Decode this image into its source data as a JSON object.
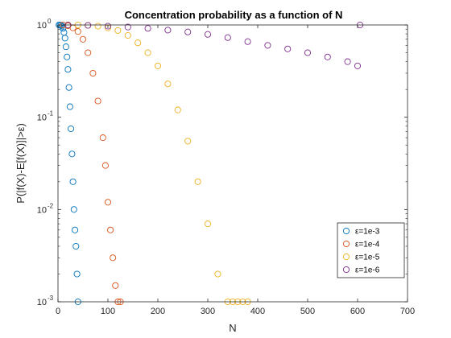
{
  "chart_data": {
    "type": "scatter",
    "title": "Concentration probability as a function of N",
    "xlabel": "N",
    "ylabel": "P(|f(X)-E[f(X)]|>ε)",
    "xlim": [
      0,
      700
    ],
    "ylim": [
      0.001,
      1
    ],
    "yscale": "log",
    "grid": false,
    "legend_position": "bottom-right",
    "marker": "open-circle",
    "x_ticks": [
      "0",
      "100",
      "200",
      "300",
      "400",
      "500",
      "600",
      "700"
    ],
    "y_ticks": [
      "10",
      "10",
      "10",
      "10"
    ],
    "y_tick_exponents": [
      "0",
      "-1",
      "-2",
      "-3"
    ],
    "series": [
      {
        "name": "ε=1e-3",
        "color": "#0072BD",
        "x": [
          2,
          4,
          6,
          8,
          10,
          12,
          14,
          16,
          18,
          20,
          22,
          24,
          26,
          28,
          30,
          32,
          34,
          36,
          38,
          40
        ],
        "y": [
          1.0,
          1.0,
          0.99,
          0.97,
          0.92,
          0.83,
          0.72,
          0.58,
          0.45,
          0.33,
          0.21,
          0.13,
          0.075,
          0.04,
          0.02,
          0.01,
          0.006,
          0.004,
          0.002,
          0.001
        ]
      },
      {
        "name": "ε=1e-4",
        "color": "#D95319",
        "x": [
          10,
          20,
          30,
          40,
          50,
          60,
          70,
          80,
          90,
          95,
          100,
          105,
          110,
          115,
          120,
          125
        ],
        "y": [
          1.0,
          0.98,
          0.93,
          0.85,
          0.7,
          0.5,
          0.3,
          0.15,
          0.06,
          0.03,
          0.012,
          0.006,
          0.003,
          0.0015,
          0.001,
          0.001
        ]
      },
      {
        "name": "ε=1e-5",
        "color": "#EDB120",
        "x": [
          20,
          40,
          60,
          80,
          100,
          120,
          140,
          160,
          180,
          200,
          220,
          240,
          260,
          280,
          300,
          320,
          340,
          350,
          360,
          370,
          380
        ],
        "y": [
          1.0,
          1.0,
          0.99,
          0.97,
          0.93,
          0.87,
          0.77,
          0.64,
          0.5,
          0.36,
          0.23,
          0.12,
          0.055,
          0.02,
          0.007,
          0.002,
          0.001,
          0.001,
          0.001,
          0.001,
          0.001
        ]
      },
      {
        "name": "ε=1e-6",
        "color": "#7E2F8E",
        "x": [
          20,
          60,
          100,
          140,
          180,
          220,
          260,
          300,
          340,
          380,
          420,
          460,
          500,
          540,
          580,
          600,
          605
        ],
        "y": [
          1.0,
          0.99,
          0.97,
          0.95,
          0.92,
          0.88,
          0.84,
          0.79,
          0.73,
          0.66,
          0.6,
          0.55,
          0.5,
          0.45,
          0.4,
          0.36,
          1.0
        ]
      }
    ]
  }
}
